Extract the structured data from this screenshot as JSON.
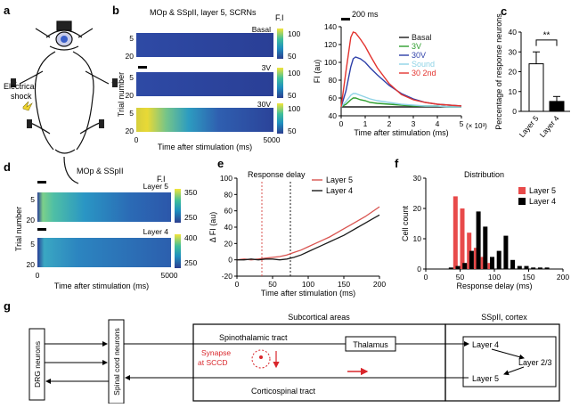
{
  "panels": {
    "a": {
      "letter": "a",
      "label_line1": "Electrical",
      "label_line2": "shock"
    },
    "b": {
      "letter": "b",
      "title": "MOp & SSpII, layer 5, SCRNs",
      "ylabel": "Trial number",
      "xlabel": "Time after stimulation (ms)",
      "colorbar_title": "F.I",
      "heatmaps": [
        {
          "label": "Basal",
          "ticks": [
            "5",
            "20"
          ],
          "cbar_ticks": [
            "100",
            "50"
          ]
        },
        {
          "label": "3V",
          "ticks": [
            "5",
            "20"
          ],
          "cbar_ticks": [
            "100",
            "50"
          ]
        },
        {
          "label": "30V",
          "ticks": [
            "5",
            "20"
          ],
          "cbar_ticks": [
            "100",
            "50"
          ]
        }
      ],
      "x_ticks": [
        "0",
        "5000"
      ]
    },
    "b_line": {
      "scalebar_label": "200 ms",
      "axis_suffix": "(× 10³)"
    },
    "d": {
      "letter": "d",
      "title": "MOp & SSpII",
      "ylabel": "Trial number",
      "xlabel": "Time after stimulation (ms)",
      "colorbar_title": "F.I",
      "heatmaps": [
        {
          "label": "Layer 5",
          "ticks": [
            "5",
            "20"
          ],
          "cbar_ticks": [
            "350",
            "250"
          ]
        },
        {
          "label": "Layer 4",
          "ticks": [
            "5",
            "20"
          ],
          "cbar_ticks": [
            "400",
            "250"
          ]
        }
      ],
      "x_ticks": [
        "0",
        "5000"
      ]
    },
    "g": {
      "letter": "g",
      "subcortical_label": "Subcortical areas",
      "cortex_label": "SSpII, cortex",
      "drg_label": "DRG neurons",
      "spinal_label": "Spinal cord neurons",
      "spinothalamic": "Spinothalamic tract",
      "corticospinal": "Corticospinal tract",
      "thalamus": "Thalamus",
      "synapse_line1": "Synapse",
      "synapse_line2": "at SCCD",
      "layer4": "Layer 4",
      "layer23": "Layer 2/3",
      "layer5": "Layer 5"
    }
  },
  "chart_data": [
    {
      "panel": "b",
      "type": "line",
      "title": "",
      "xlabel": "Time after stimulation (ms)",
      "ylabel": "FI (au)",
      "xlim": [
        0,
        5
      ],
      "ylim": [
        40,
        140
      ],
      "x_ticks": [
        "0",
        "1",
        "2",
        "3",
        "4",
        "5"
      ],
      "y_ticks": [
        "40",
        "60",
        "80",
        "100",
        "120",
        "140"
      ],
      "x": [
        0,
        0.2,
        0.4,
        0.5,
        0.6,
        0.8,
        1.0,
        1.2,
        1.5,
        2.0,
        2.5,
        3.0,
        3.5,
        4.0,
        4.5,
        5.0
      ],
      "series": [
        {
          "name": "Basal",
          "color": "#1a1a1a",
          "values": [
            50,
            50,
            50,
            50,
            50,
            50,
            50,
            50,
            50,
            50,
            50,
            50,
            50,
            50,
            50,
            50
          ]
        },
        {
          "name": "3V",
          "color": "#2e9e2e",
          "values": [
            50,
            53,
            58,
            60,
            60,
            58,
            57,
            55,
            54,
            53,
            52,
            51,
            51,
            51,
            50,
            50
          ]
        },
        {
          "name": "30V",
          "color": "#2d3fa8",
          "values": [
            50,
            68,
            95,
            104,
            106,
            104,
            100,
            94,
            86,
            74,
            65,
            59,
            55,
            53,
            52,
            51
          ]
        },
        {
          "name": "Sound",
          "color": "#8fd3e6",
          "values": [
            50,
            56,
            63,
            65,
            65,
            63,
            61,
            59,
            57,
            55,
            53,
            52,
            51,
            51,
            50,
            50
          ]
        },
        {
          "name": "30 2nd",
          "color": "#e3342f",
          "values": [
            50,
            90,
            128,
            134,
            133,
            126,
            118,
            108,
            94,
            76,
            64,
            58,
            55,
            53,
            52,
            51
          ]
        }
      ]
    },
    {
      "panel": "c",
      "type": "bar",
      "title": "",
      "xlabel": "",
      "ylabel": "Percentage of response neurons",
      "ylim": [
        0,
        40
      ],
      "y_ticks": [
        "0",
        "10",
        "20",
        "30",
        "40"
      ],
      "categories": [
        "Layer 5",
        "Layer 4"
      ],
      "values": [
        24,
        5
      ],
      "errors": [
        6,
        2.5
      ],
      "bar_colors": [
        "#ffffff",
        "#000000"
      ],
      "significance": "**"
    },
    {
      "panel": "e",
      "type": "line",
      "title": "Response delay",
      "xlabel": "Time after stimulation (ms)",
      "ylabel": "Δ FI (au)",
      "xlim": [
        0,
        200
      ],
      "ylim": [
        -20,
        100
      ],
      "x_ticks": [
        "0",
        "50",
        "100",
        "150",
        "200"
      ],
      "y_ticks": [
        "-20",
        "0",
        "20",
        "40",
        "60",
        "80",
        "100"
      ],
      "x": [
        0,
        10,
        20,
        30,
        40,
        50,
        60,
        70,
        80,
        90,
        100,
        110,
        120,
        130,
        140,
        150,
        160,
        170,
        180,
        190,
        200
      ],
      "series": [
        {
          "name": "Layer 5",
          "color": "#d9534f",
          "values": [
            0,
            1,
            0,
            1,
            2,
            3,
            4,
            6,
            9,
            12,
            16,
            20,
            24,
            28,
            33,
            38,
            43,
            48,
            53,
            59,
            65
          ]
        },
        {
          "name": "Layer 4",
          "color": "#1a1a1a",
          "values": [
            0,
            0,
            1,
            0,
            1,
            1,
            0,
            1,
            3,
            6,
            10,
            14,
            18,
            22,
            26,
            30,
            35,
            40,
            45,
            50,
            55
          ]
        }
      ],
      "vlines": [
        {
          "x": 35,
          "color": "#d9534f"
        },
        {
          "x": 75,
          "color": "#1a1a1a"
        }
      ]
    },
    {
      "panel": "f",
      "type": "bar",
      "title": "Distribution",
      "xlabel": "Response delay (ms)",
      "ylabel": "Cell count",
      "xlim": [
        0,
        200
      ],
      "ylim": [
        0,
        30
      ],
      "x_ticks": [
        "0",
        "50",
        "100",
        "150",
        "200"
      ],
      "y_ticks": [
        "0",
        "10",
        "20",
        "30"
      ],
      "bin_width": 10,
      "series": [
        {
          "name": "Layer 5",
          "color": "#e84a4a",
          "bin_starts": [
            40,
            50,
            60,
            70,
            80,
            90
          ],
          "values": [
            24,
            20,
            12,
            7,
            4,
            2
          ]
        },
        {
          "name": "Layer 4",
          "color": "#000000",
          "bin_starts": [
            30,
            40,
            50,
            60,
            70,
            80,
            90,
            100,
            110,
            120,
            130,
            140,
            150,
            160,
            170
          ],
          "values": [
            0.5,
            1,
            2,
            6,
            19,
            14,
            4,
            6,
            11,
            3,
            1,
            1,
            0.5,
            0.5,
            0.5
          ]
        }
      ]
    }
  ]
}
